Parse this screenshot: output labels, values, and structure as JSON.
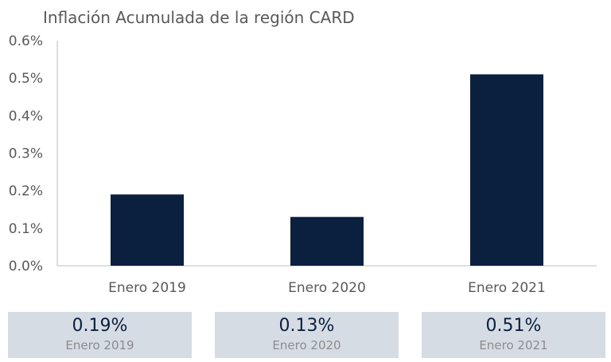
{
  "title": "Inflación Acumulada de la región CARD",
  "colors": {
    "bar": "#0b1f3f",
    "card_bg": "#d6dce4",
    "axis": "#bfbfbf",
    "label": "#595959"
  },
  "chart_data": {
    "type": "bar",
    "title": "Inflación Acumulada de la región CARD",
    "categories": [
      "Enero 2019",
      "Enero 2020",
      "Enero 2021"
    ],
    "values": [
      0.19,
      0.13,
      0.51
    ],
    "ylim": [
      0,
      0.6
    ],
    "yticks": [
      "0.0%",
      "0.1%",
      "0.2%",
      "0.3%",
      "0.4%",
      "0.5%",
      "0.6%"
    ],
    "grid": false,
    "xlabel": "",
    "ylabel": ""
  },
  "cards": [
    {
      "value": "0.19%",
      "label": "Enero 2019"
    },
    {
      "value": "0.13%",
      "label": "Enero 2020"
    },
    {
      "value": "0.51%",
      "label": "Enero 2021"
    }
  ]
}
